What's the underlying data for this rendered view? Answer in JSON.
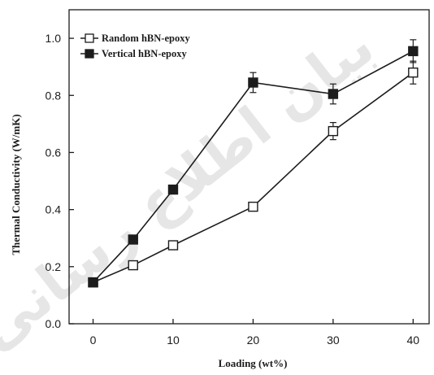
{
  "chart_data": {
    "type": "line",
    "title": "",
    "xlabel": "Loading (wt%)",
    "ylabel": "Thermal Conductivity (W/mK)",
    "xlim": [
      -3,
      42
    ],
    "ylim": [
      0.0,
      1.1
    ],
    "x_ticks": [
      0,
      10,
      20,
      30,
      40
    ],
    "x_tick_labels": [
      "0",
      "10",
      "20",
      "30",
      "40"
    ],
    "y_ticks": [
      0.0,
      0.2,
      0.4,
      0.6,
      0.8,
      1.0
    ],
    "y_tick_labels": [
      "0.0",
      "0.2",
      "0.4",
      "0.6",
      "0.8",
      "1.0"
    ],
    "grid": false,
    "legend_position": "top-left",
    "series": [
      {
        "name": "Random hBN-epoxy",
        "marker": "open-square",
        "color": "#1c1c1c",
        "x": [
          0,
          5,
          10,
          20,
          30,
          40
        ],
        "y": [
          0.145,
          0.205,
          0.275,
          0.41,
          0.675,
          0.88
        ],
        "error": [
          0,
          0.01,
          0.01,
          0.015,
          0.03,
          0.04
        ]
      },
      {
        "name": "Vertical hBN-epoxy",
        "marker": "filled-square",
        "color": "#1c1c1c",
        "x": [
          0,
          5,
          10,
          20,
          30,
          40
        ],
        "y": [
          0.145,
          0.295,
          0.47,
          0.845,
          0.805,
          0.955
        ],
        "error": [
          0,
          0.01,
          0.015,
          0.035,
          0.035,
          0.04
        ]
      }
    ]
  },
  "legend_markers": [
    "-□-",
    "-■-"
  ],
  "watermark_text": "بیان اطلاع رسانی"
}
